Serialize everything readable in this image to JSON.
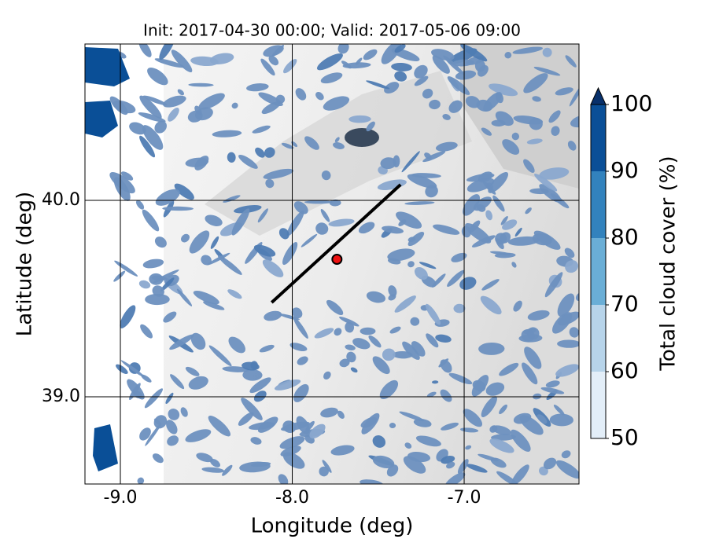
{
  "chart_data": {
    "type": "map",
    "title": "Init: 2017-04-30 00:00; Valid: 2017-05-06 09:00",
    "x_label": "Longitude (deg)",
    "y_label": "Latitude (deg)",
    "xlim": [
      -9.206,
      -6.332
    ],
    "ylim": [
      38.556,
      40.796
    ],
    "xticks": [
      {
        "value": -9,
        "label": "-9.0"
      },
      {
        "value": -8,
        "label": "-8.0"
      },
      {
        "value": -7,
        "label": "-7.0"
      }
    ],
    "yticks": [
      {
        "value": 39,
        "label": "39.0"
      },
      {
        "value": 40,
        "label": "40.0"
      }
    ],
    "grid": true,
    "transect": {
      "lon": [
        -8.12,
        -7.37
      ],
      "lat": [
        39.48,
        40.08
      ],
      "color": "#000000"
    },
    "marker": {
      "lon": -7.74,
      "lat": 39.7,
      "color": "#ee1111"
    },
    "colorbar": {
      "label": "Total cloud cover (%)",
      "clim": [
        50,
        100
      ],
      "ticks": [
        50,
        60,
        70,
        80,
        90,
        100
      ],
      "colors": [
        "#e3eef8",
        "#b7d4ea",
        "#6aaed6",
        "#3282bd",
        "#0a4f97"
      ],
      "extend_color": "#08306b"
    }
  }
}
